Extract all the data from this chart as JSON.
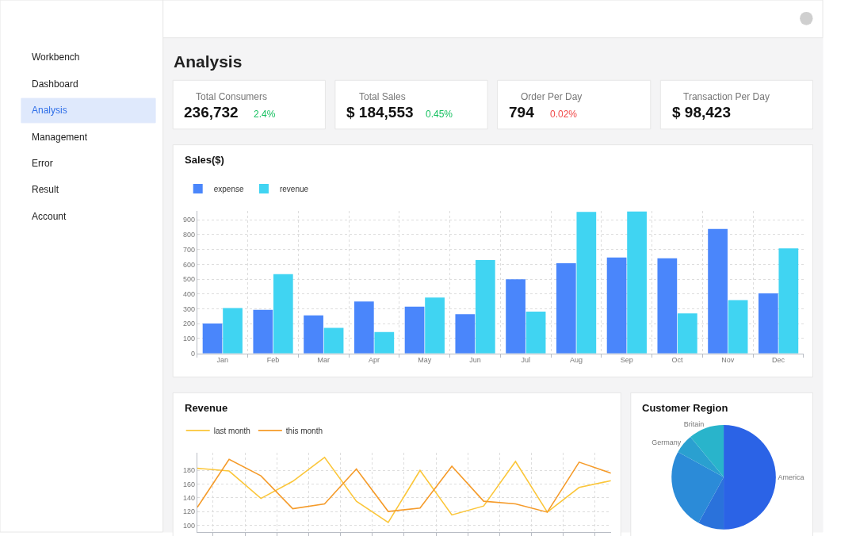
{
  "chart_data": [
    {
      "type": "other",
      "title": "Analysis",
      "annotations": [
        "Workbench",
        "Dashboard",
        "Analysis",
        "Management",
        "Error",
        "Result",
        "Account",
        "Total Consumers",
        "236,732",
        "2.4%",
        "Total Sales",
        "$ 184,553",
        "0.45%",
        "Order Per Day",
        "794",
        "0.02%",
        "Transaction Per Day",
        "$ 98,423"
      ]
    },
    {
      "type": "bar",
      "title": "Sales($)",
      "categories": [
        "Jan",
        "Feb",
        "Mar",
        "Apr",
        "May",
        "Jun",
        "Jul",
        "Aug",
        "Sep",
        "Oct",
        "Nov",
        "Dec"
      ],
      "series": [
        {
          "name": "expense",
          "color": "#4a86fb",
          "values": [
            201,
            294,
            256,
            349,
            315,
            264,
            499,
            608,
            646,
            641,
            839,
            405
          ]
        },
        {
          "name": "revenue",
          "color": "#40d4f2",
          "values": [
            306,
            534,
            172,
            144,
            376,
            629,
            282,
            954,
            956,
            270,
            359,
            708
          ]
        }
      ],
      "ylim": [
        0,
        960
      ],
      "yticks": [
        0,
        100,
        200,
        300,
        400,
        500,
        600,
        700,
        800,
        900
      ],
      "grid": true,
      "legend": "top left"
    },
    {
      "type": "line",
      "title": "Revenue",
      "categories": [
        null,
        null,
        null,
        null,
        null,
        null,
        null,
        null,
        null,
        null,
        null,
        null,
        null,
        null
      ],
      "series": [
        {
          "name": "last month",
          "color": "#fbc63a",
          "values": [
            183,
            179,
            139,
            164,
            199,
            135,
            104,
            180,
            115,
            128,
            193,
            119,
            155,
            165
          ]
        },
        {
          "name": "this month",
          "color": "#f59b2a",
          "values": [
            126,
            196,
            172,
            124,
            131,
            182,
            120,
            125,
            186,
            135,
            131,
            119,
            192,
            176
          ]
        }
      ],
      "ylim": [
        90,
        206
      ],
      "yticks": [
        100,
        120,
        140,
        160,
        180
      ],
      "grid": true,
      "legend": "top left",
      "tick_labels": "y"
    },
    {
      "type": "pie",
      "title": "Customer Region",
      "categories": [
        "America",
        null,
        null,
        "Germany",
        "Britain"
      ],
      "values": [
        50,
        8,
        25,
        6,
        11
      ],
      "colors": [
        "#2b63e6",
        "#2a72db",
        "#2b8bd8",
        "#2aa0d0",
        "#29b4cb"
      ]
    }
  ]
}
